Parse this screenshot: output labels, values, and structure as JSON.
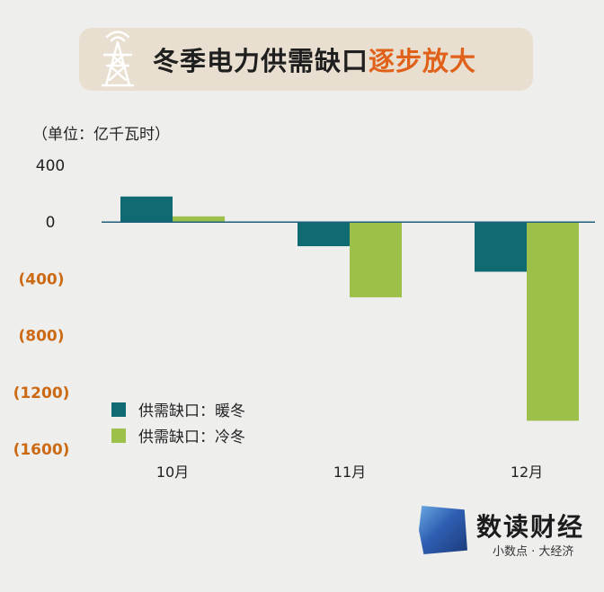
{
  "title": {
    "main": "冬季电力供需缺口",
    "accent": "逐步放大"
  },
  "unit_label": "（单位：亿千瓦时）",
  "icons": {
    "title_icon": "power-tower-icon",
    "brand_logo": "brand-logo-icon"
  },
  "colors": {
    "banner_bg": "#e9dfd0",
    "accent": "#e0611a",
    "series_warm": "#0f6a72",
    "series_cold": "#9cc04a",
    "axis": "#1f5f7a",
    "negative_tick": "#cc6a14"
  },
  "brand": {
    "name": "数读财经",
    "slogan": "小数点 · 大经济"
  },
  "chart_data": {
    "type": "bar",
    "categories": [
      "10月",
      "11月",
      "12月"
    ],
    "series": [
      {
        "name": "供需缺口：暖冬",
        "values": [
          180,
          -170,
          -350
        ],
        "color": "#0f6a72"
      },
      {
        "name": "供需缺口：冷冬",
        "values": [
          40,
          -530,
          -1400
        ],
        "color": "#9cc04a"
      }
    ],
    "ylim": [
      -1600,
      400
    ],
    "yticks": [
      {
        "value": 400,
        "label": "400"
      },
      {
        "value": 0,
        "label": "0"
      },
      {
        "value": -400,
        "label": "(400)"
      },
      {
        "value": -800,
        "label": "(800)"
      },
      {
        "value": -1200,
        "label": "(1200)"
      },
      {
        "value": -1600,
        "label": "(1600)"
      }
    ],
    "legend_position": "bottom-left",
    "grid": false
  }
}
